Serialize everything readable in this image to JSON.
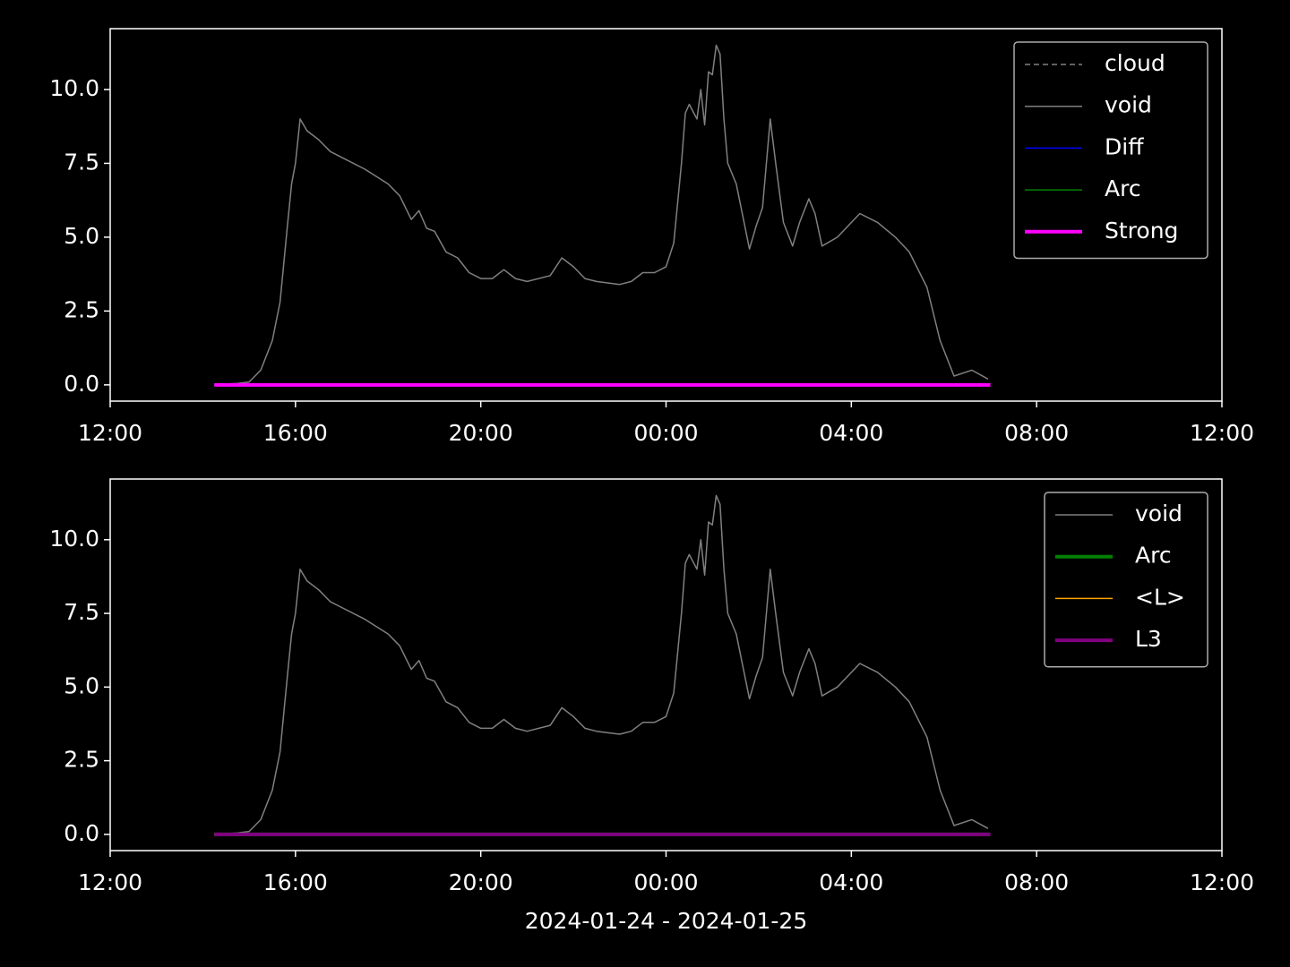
{
  "chart_data": [
    {
      "type": "line",
      "xlim": [
        "2024-01-24T12:00",
        "2024-01-25T12:00"
      ],
      "xticks": [
        {
          "value": "2024-01-24T12:00",
          "label": "12:00"
        },
        {
          "value": "2024-01-24T16:00",
          "label": "16:00"
        },
        {
          "value": "2024-01-24T20:00",
          "label": "20:00"
        },
        {
          "value": "2024-01-25T00:00",
          "label": "00:00"
        },
        {
          "value": "2024-01-25T04:00",
          "label": "04:00"
        },
        {
          "value": "2024-01-25T08:00",
          "label": "08:00"
        },
        {
          "value": "2024-01-25T12:00",
          "label": "12:00"
        }
      ],
      "ylim": [
        -0.55,
        12.06
      ],
      "yticks": [
        {
          "value": 0,
          "label": "0.0"
        },
        {
          "value": 2.5,
          "label": "2.5"
        },
        {
          "value": 5,
          "label": "5.0"
        },
        {
          "value": 7.5,
          "label": "7.5"
        },
        {
          "value": 10,
          "label": "10.0"
        }
      ],
      "legend": "upper right",
      "series": [
        {
          "name": "cloud",
          "color": "#808080",
          "linestyle": "dashed",
          "linewidth": 1.5,
          "x": [
            "2024-01-24T14:15",
            "2024-01-25T07:00"
          ],
          "values": [
            0,
            0
          ]
        },
        {
          "name": "void",
          "color": "#808080",
          "linestyle": "solid",
          "linewidth": 1.5,
          "x": [
            "2024-01-24T14:15",
            "2024-01-24T14:45",
            "2024-01-24T15:00",
            "2024-01-24T15:15",
            "2024-01-24T15:30",
            "2024-01-24T15:40",
            "2024-01-24T15:50",
            "2024-01-24T15:55",
            "2024-01-24T16:00",
            "2024-01-24T16:06",
            "2024-01-24T16:15",
            "2024-01-24T16:30",
            "2024-01-24T16:45",
            "2024-01-24T17:00",
            "2024-01-24T17:30",
            "2024-01-24T18:00",
            "2024-01-24T18:15",
            "2024-01-24T18:30",
            "2024-01-24T18:40",
            "2024-01-24T18:50",
            "2024-01-24T19:00",
            "2024-01-24T19:15",
            "2024-01-24T19:30",
            "2024-01-24T19:45",
            "2024-01-24T20:00",
            "2024-01-24T20:15",
            "2024-01-24T20:30",
            "2024-01-24T20:45",
            "2024-01-24T21:00",
            "2024-01-24T21:30",
            "2024-01-24T21:45",
            "2024-01-24T22:00",
            "2024-01-24T22:15",
            "2024-01-24T22:30",
            "2024-01-24T23:00",
            "2024-01-24T23:15",
            "2024-01-24T23:30",
            "2024-01-24T23:45",
            "2024-01-25T00:00",
            "2024-01-25T00:10",
            "2024-01-25T00:20",
            "2024-01-25T00:25",
            "2024-01-25T00:30",
            "2024-01-25T00:40",
            "2024-01-25T00:45",
            "2024-01-25T00:50",
            "2024-01-25T00:55",
            "2024-01-25T01:00",
            "2024-01-25T01:05",
            "2024-01-25T01:10",
            "2024-01-25T01:15",
            "2024-01-25T01:20",
            "2024-01-25T01:31",
            "2024-01-25T01:48",
            "2024-01-25T01:57",
            "2024-01-25T02:05",
            "2024-01-25T02:15",
            "2024-01-25T02:22",
            "2024-01-25T02:32",
            "2024-01-25T02:44",
            "2024-01-25T02:53",
            "2024-01-25T03:05",
            "2024-01-25T03:13",
            "2024-01-25T03:22",
            "2024-01-25T03:42",
            "2024-01-25T04:11",
            "2024-01-25T04:34",
            "2024-01-25T04:57",
            "2024-01-25T05:15",
            "2024-01-25T05:38",
            "2024-01-25T05:55",
            "2024-01-25T06:13",
            "2024-01-25T06:36",
            "2024-01-25T06:57"
          ],
          "values": [
            0.0,
            0.05,
            0.1,
            0.5,
            1.5,
            2.8,
            5.5,
            6.8,
            7.5,
            9.0,
            8.6,
            8.3,
            7.9,
            7.7,
            7.3,
            6.8,
            6.4,
            5.6,
            5.9,
            5.3,
            5.2,
            4.5,
            4.3,
            3.8,
            3.6,
            3.6,
            3.9,
            3.6,
            3.5,
            3.7,
            4.3,
            4.0,
            3.6,
            3.5,
            3.4,
            3.5,
            3.8,
            3.8,
            4.0,
            4.8,
            7.5,
            9.2,
            9.5,
            9.0,
            10.0,
            8.8,
            10.6,
            10.5,
            11.5,
            11.2,
            9.0,
            7.5,
            6.8,
            4.6,
            5.4,
            6.0,
            9.0,
            7.5,
            5.5,
            4.7,
            5.5,
            6.3,
            5.8,
            4.7,
            5.0,
            5.8,
            5.5,
            5.0,
            4.5,
            3.3,
            1.5,
            0.3,
            0.5,
            0.2
          ]
        },
        {
          "name": "Diff",
          "color": "#0000ff",
          "linestyle": "solid",
          "linewidth": 1.5,
          "x": [
            "2024-01-24T14:15",
            "2024-01-25T07:00"
          ],
          "values": [
            0,
            0
          ]
        },
        {
          "name": "Arc",
          "color": "#008000",
          "linestyle": "solid",
          "linewidth": 1.5,
          "x": [
            "2024-01-24T14:15",
            "2024-01-25T07:00"
          ],
          "values": [
            0,
            0
          ]
        },
        {
          "name": "Strong",
          "color": "#ff00ff",
          "linestyle": "solid",
          "linewidth": 4,
          "x": [
            "2024-01-24T14:15",
            "2024-01-25T07:00"
          ],
          "values": [
            0,
            0
          ]
        }
      ]
    },
    {
      "type": "line",
      "xlabel": "2024-01-24 - 2024-01-25",
      "xlim": [
        "2024-01-24T12:00",
        "2024-01-25T12:00"
      ],
      "xticks": [
        {
          "value": "2024-01-24T12:00",
          "label": "12:00"
        },
        {
          "value": "2024-01-24T16:00",
          "label": "16:00"
        },
        {
          "value": "2024-01-24T20:00",
          "label": "20:00"
        },
        {
          "value": "2024-01-25T00:00",
          "label": "00:00"
        },
        {
          "value": "2024-01-25T04:00",
          "label": "04:00"
        },
        {
          "value": "2024-01-25T08:00",
          "label": "08:00"
        },
        {
          "value": "2024-01-25T12:00",
          "label": "12:00"
        }
      ],
      "ylim": [
        -0.55,
        12.06
      ],
      "yticks": [
        {
          "value": 0,
          "label": "0.0"
        },
        {
          "value": 2.5,
          "label": "2.5"
        },
        {
          "value": 5,
          "label": "5.0"
        },
        {
          "value": 7.5,
          "label": "7.5"
        },
        {
          "value": 10,
          "label": "10.0"
        }
      ],
      "legend": "upper right",
      "series": [
        {
          "name": "void",
          "color": "#808080",
          "linestyle": "solid",
          "linewidth": 1.5,
          "x": [
            "2024-01-24T14:15",
            "2024-01-24T14:45",
            "2024-01-24T15:00",
            "2024-01-24T15:15",
            "2024-01-24T15:30",
            "2024-01-24T15:40",
            "2024-01-24T15:50",
            "2024-01-24T15:55",
            "2024-01-24T16:00",
            "2024-01-24T16:06",
            "2024-01-24T16:15",
            "2024-01-24T16:30",
            "2024-01-24T16:45",
            "2024-01-24T17:00",
            "2024-01-24T17:30",
            "2024-01-24T18:00",
            "2024-01-24T18:15",
            "2024-01-24T18:30",
            "2024-01-24T18:40",
            "2024-01-24T18:50",
            "2024-01-24T19:00",
            "2024-01-24T19:15",
            "2024-01-24T19:30",
            "2024-01-24T19:45",
            "2024-01-24T20:00",
            "2024-01-24T20:15",
            "2024-01-24T20:30",
            "2024-01-24T20:45",
            "2024-01-24T21:00",
            "2024-01-24T21:30",
            "2024-01-24T21:45",
            "2024-01-24T22:00",
            "2024-01-24T22:15",
            "2024-01-24T22:30",
            "2024-01-24T23:00",
            "2024-01-24T23:15",
            "2024-01-24T23:30",
            "2024-01-24T23:45",
            "2024-01-25T00:00",
            "2024-01-25T00:10",
            "2024-01-25T00:20",
            "2024-01-25T00:25",
            "2024-01-25T00:30",
            "2024-01-25T00:40",
            "2024-01-25T00:45",
            "2024-01-25T00:50",
            "2024-01-25T00:55",
            "2024-01-25T01:00",
            "2024-01-25T01:05",
            "2024-01-25T01:10",
            "2024-01-25T01:15",
            "2024-01-25T01:20",
            "2024-01-25T01:31",
            "2024-01-25T01:48",
            "2024-01-25T01:57",
            "2024-01-25T02:05",
            "2024-01-25T02:15",
            "2024-01-25T02:22",
            "2024-01-25T02:32",
            "2024-01-25T02:44",
            "2024-01-25T02:53",
            "2024-01-25T03:05",
            "2024-01-25T03:13",
            "2024-01-25T03:22",
            "2024-01-25T03:42",
            "2024-01-25T04:11",
            "2024-01-25T04:34",
            "2024-01-25T04:57",
            "2024-01-25T05:15",
            "2024-01-25T05:38",
            "2024-01-25T05:55",
            "2024-01-25T06:13",
            "2024-01-25T06:36",
            "2024-01-25T06:57"
          ],
          "values": [
            0.0,
            0.05,
            0.1,
            0.5,
            1.5,
            2.8,
            5.5,
            6.8,
            7.5,
            9.0,
            8.6,
            8.3,
            7.9,
            7.7,
            7.3,
            6.8,
            6.4,
            5.6,
            5.9,
            5.3,
            5.2,
            4.5,
            4.3,
            3.8,
            3.6,
            3.6,
            3.9,
            3.6,
            3.5,
            3.7,
            4.3,
            4.0,
            3.6,
            3.5,
            3.4,
            3.5,
            3.8,
            3.8,
            4.0,
            4.8,
            7.5,
            9.2,
            9.5,
            9.0,
            10.0,
            8.8,
            10.6,
            10.5,
            11.5,
            11.2,
            9.0,
            7.5,
            6.8,
            4.6,
            5.4,
            6.0,
            9.0,
            7.5,
            5.5,
            4.7,
            5.5,
            6.3,
            5.8,
            4.7,
            5.0,
            5.8,
            5.5,
            5.0,
            4.5,
            3.3,
            1.5,
            0.3,
            0.5,
            0.2
          ]
        },
        {
          "name": "Arc",
          "color": "#008000",
          "linestyle": "solid",
          "linewidth": 4,
          "x": [
            "2024-01-24T14:15",
            "2024-01-25T07:00"
          ],
          "values": [
            0,
            0
          ]
        },
        {
          "name": "<L>",
          "color": "#ffa500",
          "linestyle": "solid",
          "linewidth": 1.5,
          "x": [
            "2024-01-24T14:15",
            "2024-01-25T07:00"
          ],
          "values": [
            0,
            0
          ]
        },
        {
          "name": "L3",
          "color": "#800080",
          "linestyle": "solid",
          "linewidth": 4,
          "x": [
            "2024-01-24T14:15",
            "2024-01-25T07:00"
          ],
          "values": [
            0,
            0
          ]
        }
      ]
    }
  ]
}
